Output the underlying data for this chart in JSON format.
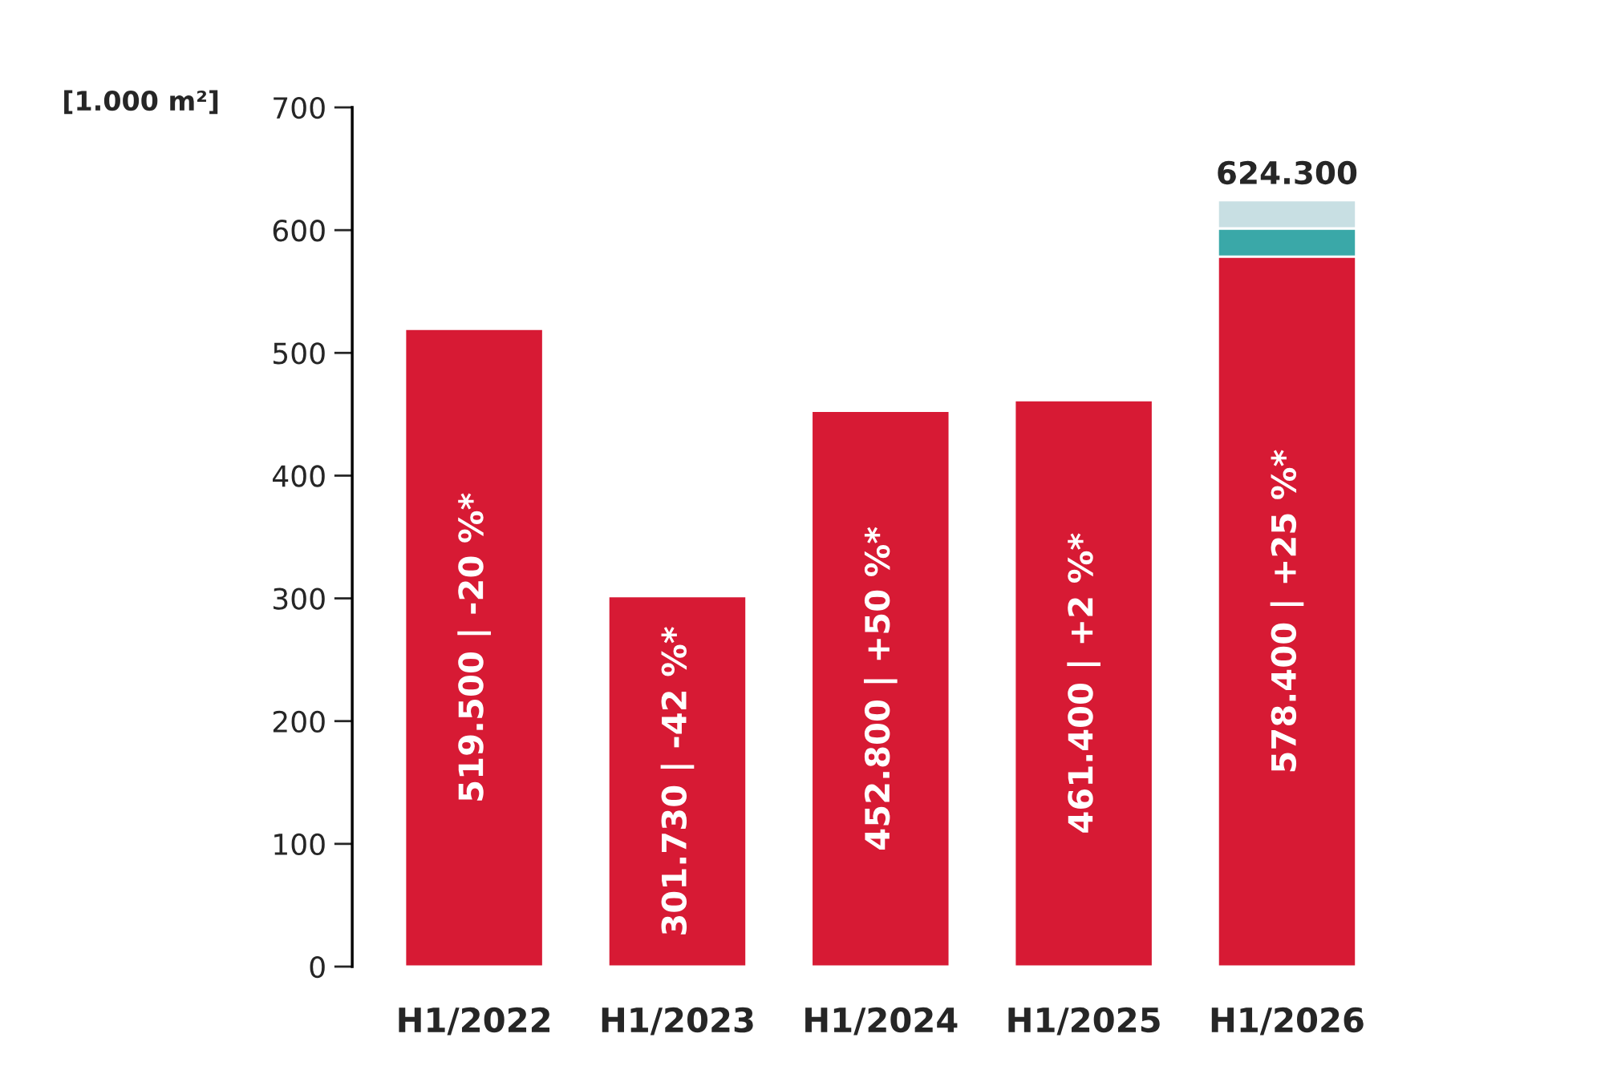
{
  "chart_data": {
    "type": "bar",
    "ylabel": "[1.000 m²]",
    "categories": [
      "H1/2022",
      "H1/2023",
      "H1/2024",
      "H1/2025",
      "H1/2026"
    ],
    "stacked": true,
    "series": [
      {
        "color": "#d71a34",
        "values": [
          519.5,
          301.73,
          452.8,
          461.4,
          578.4
        ],
        "value_labels": [
          "519.500 | -20 %*",
          "301.730 | -42 %*",
          "452.800 | +50 %*",
          "461.400 | +2 %*",
          "578.400 | +25 %*"
        ]
      },
      {
        "color": "#3aa8a8",
        "values": [
          null,
          null,
          null,
          null,
          23
        ]
      },
      {
        "color": "#c8dfe3",
        "values": [
          null,
          null,
          null,
          null,
          22.9
        ]
      }
    ],
    "totals": [
      null,
      null,
      null,
      null,
      "624.300"
    ],
    "ylim": [
      0,
      700
    ],
    "yticks": [
      0,
      100,
      200,
      300,
      400,
      500,
      600,
      700
    ],
    "grid": false,
    "legend": false
  }
}
